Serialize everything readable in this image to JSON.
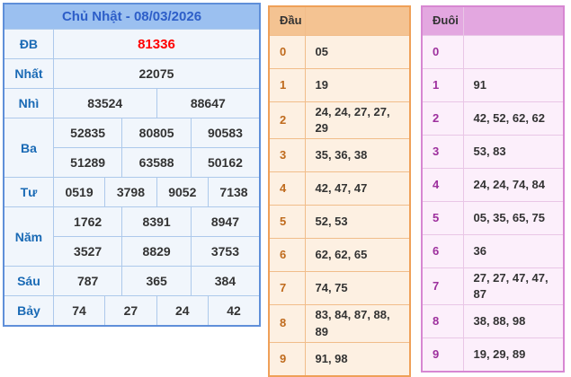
{
  "left_table": {
    "title": "Chủ Nhật - 08/03/2026",
    "rows": [
      {
        "label": "ĐB",
        "values": [
          "81336"
        ]
      },
      {
        "label": "Nhất",
        "values": [
          "22075"
        ]
      },
      {
        "label": "Nhì",
        "values": [
          "83524",
          "88647"
        ]
      },
      {
        "label": "Ba",
        "values": [
          "52835",
          "80805",
          "90583",
          "51289",
          "63588",
          "50162"
        ]
      },
      {
        "label": "Tư",
        "values": [
          "0519",
          "3798",
          "9052",
          "7138"
        ]
      },
      {
        "label": "Năm",
        "values": [
          "1762",
          "8391",
          "8947",
          "3527",
          "8829",
          "3753"
        ]
      },
      {
        "label": "Sáu",
        "values": [
          "787",
          "365",
          "384"
        ]
      },
      {
        "label": "Bảy",
        "values": [
          "74",
          "27",
          "24",
          "42"
        ]
      }
    ]
  },
  "dau_table": {
    "header": "Đầu",
    "rows": [
      {
        "digit": "0",
        "values": "05"
      },
      {
        "digit": "1",
        "values": "19"
      },
      {
        "digit": "2",
        "values": "24, 24, 27, 27, 29"
      },
      {
        "digit": "3",
        "values": "35, 36, 38"
      },
      {
        "digit": "4",
        "values": "42, 47, 47"
      },
      {
        "digit": "5",
        "values": "52, 53"
      },
      {
        "digit": "6",
        "values": "62, 62, 65"
      },
      {
        "digit": "7",
        "values": "74, 75"
      },
      {
        "digit": "8",
        "values": "83, 84, 87, 88, 89"
      },
      {
        "digit": "9",
        "values": "91, 98"
      }
    ]
  },
  "duoi_table": {
    "header": "Đuôi",
    "rows": [
      {
        "digit": "0",
        "values": ""
      },
      {
        "digit": "1",
        "values": "91"
      },
      {
        "digit": "2",
        "values": "42, 52, 62, 62"
      },
      {
        "digit": "3",
        "values": "53, 83"
      },
      {
        "digit": "4",
        "values": "24, 24, 74, 84"
      },
      {
        "digit": "5",
        "values": "05, 35, 65, 75"
      },
      {
        "digit": "6",
        "values": "36"
      },
      {
        "digit": "7",
        "values": "27, 27, 47, 47, 87"
      },
      {
        "digit": "8",
        "values": "38, 88, 98"
      },
      {
        "digit": "9",
        "values": "19, 29, 89"
      }
    ]
  },
  "colors": {
    "special_prize_text": "#ff0000",
    "left_border": "#5f8fd9",
    "left_header_bg": "#9bc0f0",
    "left_header_text": "#2d5ec8",
    "left_label_text": "#1a6ab5",
    "dau_border": "#efa058",
    "dau_header_bg": "#f4c392",
    "dau_digit_text": "#bf6a1c",
    "duoi_border": "#d787d2",
    "duoi_header_bg": "#e3a7e0",
    "duoi_digit_text": "#9d2f9d",
    "value_text": "#333333"
  }
}
